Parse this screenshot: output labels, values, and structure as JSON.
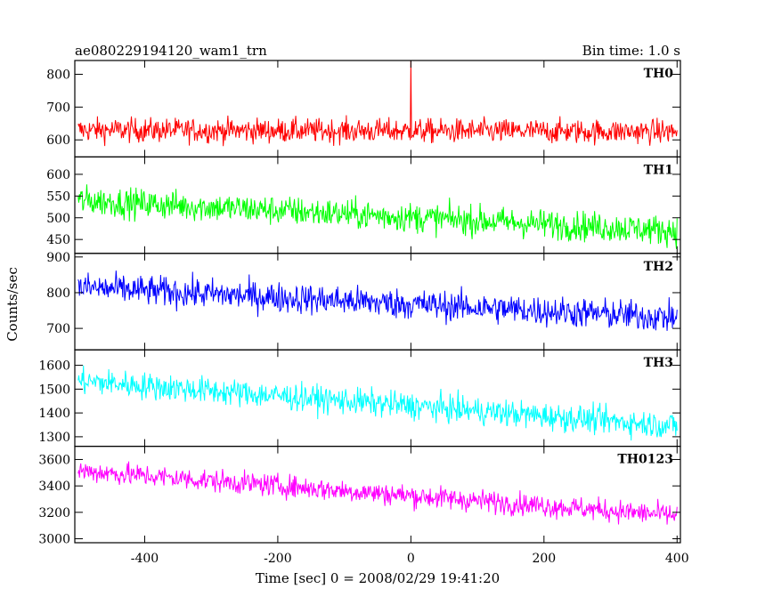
{
  "header": {
    "title": "ae080229194120_wam1_trn",
    "bin_time": "Bin time: 1.0 s"
  },
  "chart_data": {
    "type": "line",
    "xlabel": "Time [sec] 0 = 2008/02/29 19:41:20",
    "ylabel": "Counts/sec",
    "xlim": [
      -505,
      405
    ],
    "xticks": [
      -400,
      -200,
      0,
      200,
      400
    ],
    "x_start": -500,
    "x_end": 400,
    "x_step": 1,
    "panels": [
      {
        "name": "TH0",
        "color": "#ff0000",
        "ylim": [
          548,
          842
        ],
        "yticks": [
          600,
          700,
          800
        ],
        "trend_start": 630,
        "trend_end": 625,
        "noise_amplitude": 26,
        "spike": {
          "x": 0,
          "value": 845
        }
      },
      {
        "name": "TH1",
        "color": "#00ff00",
        "ylim": [
          418,
          640
        ],
        "yticks": [
          450,
          500,
          550,
          600
        ],
        "trend_start": 540,
        "trend_end": 470,
        "noise_amplitude": 24
      },
      {
        "name": "TH2",
        "color": "#0000ff",
        "ylim": [
          640,
          910
        ],
        "yticks": [
          700,
          800,
          900
        ],
        "trend_start": 815,
        "trend_end": 730,
        "noise_amplitude": 30
      },
      {
        "name": "TH3",
        "color": "#00ffff",
        "ylim": [
          1260,
          1665
        ],
        "yticks": [
          1300,
          1400,
          1500,
          1600
        ],
        "trend_start": 1535,
        "trend_end": 1345,
        "noise_amplitude": 40
      },
      {
        "name": "TH0123",
        "color": "#ff00ff",
        "ylim": [
          2970,
          3700
        ],
        "yticks": [
          3000,
          3200,
          3400,
          3600
        ],
        "trend_start": 3515,
        "trend_end": 3175,
        "noise_amplitude": 60
      }
    ]
  }
}
